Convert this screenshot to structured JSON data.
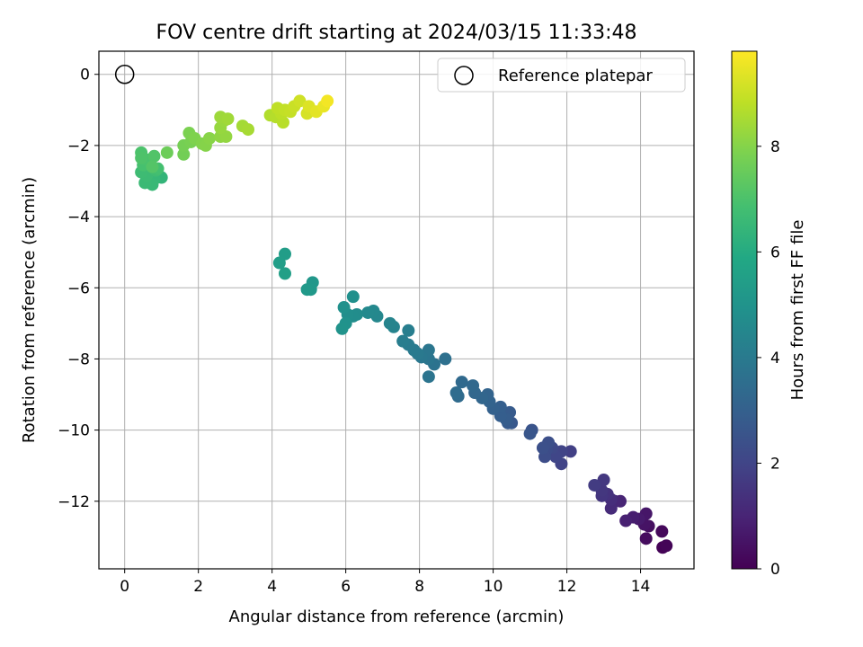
{
  "chart_data": {
    "type": "scatter",
    "title": "FOV centre drift starting at 2024/03/15 11:33:48",
    "xlabel": "Angular distance from reference (arcmin)",
    "ylabel": "Rotation from reference (arcmin)",
    "xlim": [
      -0.7,
      15.45
    ],
    "ylim": [
      -13.9,
      0.65
    ],
    "xticks": [
      0,
      2,
      4,
      6,
      8,
      10,
      12,
      14
    ],
    "yticks": [
      0,
      -2,
      -4,
      -6,
      -8,
      -10,
      -12
    ],
    "grid": true,
    "legend": {
      "placement": "top-right",
      "entries": [
        "Reference platepar"
      ]
    },
    "reference_point": {
      "x": 0,
      "y": 0
    },
    "colorbar": {
      "label": "Hours from first FF file",
      "colormap": "viridis",
      "range": [
        0,
        9.8
      ],
      "ticks": [
        0,
        2,
        4,
        6,
        8
      ]
    },
    "series": [
      {
        "points": [
          [
            14.6,
            -13.3,
            0.05
          ],
          [
            14.7,
            -13.25,
            0.1
          ],
          [
            14.58,
            -12.85,
            0.2
          ],
          [
            14.15,
            -13.05,
            0.3
          ],
          [
            14.22,
            -12.7,
            0.4
          ],
          [
            14.1,
            -12.65,
            0.5
          ],
          [
            14.15,
            -12.35,
            0.6
          ],
          [
            13.95,
            -12.5,
            0.7
          ],
          [
            13.8,
            -12.45,
            0.8
          ],
          [
            13.6,
            -12.55,
            0.9
          ],
          [
            13.45,
            -12.0,
            1.0
          ],
          [
            13.3,
            -12.0,
            1.1
          ],
          [
            13.2,
            -12.2,
            1.2
          ],
          [
            13.2,
            -11.95,
            1.3
          ],
          [
            13.1,
            -11.8,
            1.4
          ],
          [
            12.95,
            -11.85,
            1.5
          ],
          [
            12.95,
            -11.7,
            1.55
          ],
          [
            13.0,
            -11.4,
            1.6
          ],
          [
            12.75,
            -11.55,
            1.7
          ],
          [
            12.1,
            -10.6,
            1.85
          ],
          [
            11.85,
            -10.95,
            1.95
          ],
          [
            11.85,
            -10.6,
            2.0
          ],
          [
            11.7,
            -10.75,
            2.05
          ],
          [
            11.6,
            -10.5,
            2.15
          ],
          [
            11.45,
            -10.55,
            2.25
          ],
          [
            11.4,
            -10.75,
            2.3
          ],
          [
            11.5,
            -10.35,
            2.35
          ],
          [
            11.35,
            -10.5,
            2.4
          ],
          [
            11.05,
            -10.0,
            2.55
          ],
          [
            11.0,
            -10.1,
            2.6
          ],
          [
            10.5,
            -9.8,
            2.7
          ],
          [
            10.4,
            -9.8,
            2.75
          ],
          [
            10.45,
            -9.5,
            2.8
          ],
          [
            10.35,
            -9.7,
            2.85
          ],
          [
            10.2,
            -9.6,
            2.9
          ],
          [
            10.2,
            -9.35,
            2.95
          ],
          [
            10.0,
            -9.4,
            3.0
          ],
          [
            9.9,
            -9.2,
            3.1
          ],
          [
            9.85,
            -9.0,
            3.15
          ],
          [
            9.7,
            -9.1,
            3.2
          ],
          [
            9.5,
            -8.95,
            3.25
          ],
          [
            9.45,
            -8.75,
            3.3
          ],
          [
            9.15,
            -8.65,
            3.35
          ],
          [
            9.05,
            -9.05,
            3.4
          ],
          [
            9.0,
            -8.95,
            3.45
          ],
          [
            8.7,
            -8.0,
            3.6
          ],
          [
            8.4,
            -8.15,
            3.7
          ],
          [
            8.25,
            -8.5,
            3.75
          ],
          [
            8.25,
            -8.0,
            3.8
          ],
          [
            8.25,
            -7.75,
            3.85
          ],
          [
            8.05,
            -7.95,
            3.9
          ],
          [
            7.95,
            -7.85,
            3.95
          ],
          [
            7.85,
            -7.75,
            4.0
          ],
          [
            7.7,
            -7.6,
            4.05
          ],
          [
            7.55,
            -7.5,
            4.1
          ],
          [
            7.7,
            -7.2,
            4.15
          ],
          [
            7.3,
            -7.1,
            4.35
          ],
          [
            7.2,
            -7.0,
            4.4
          ],
          [
            6.85,
            -6.8,
            4.5
          ],
          [
            6.75,
            -6.65,
            4.55
          ],
          [
            6.6,
            -6.7,
            4.6
          ],
          [
            6.3,
            -6.75,
            4.7
          ],
          [
            6.2,
            -6.8,
            4.75
          ],
          [
            6.05,
            -6.75,
            4.8
          ],
          [
            6.2,
            -6.25,
            4.85
          ],
          [
            5.95,
            -6.55,
            4.9
          ],
          [
            6.0,
            -7.0,
            4.95
          ],
          [
            5.9,
            -7.15,
            5.0
          ],
          [
            5.1,
            -5.85,
            5.15
          ],
          [
            5.05,
            -6.05,
            5.2
          ],
          [
            4.95,
            -6.05,
            5.25
          ],
          [
            4.35,
            -5.05,
            5.4
          ],
          [
            4.2,
            -5.3,
            5.45
          ],
          [
            4.35,
            -5.6,
            5.5
          ],
          [
            1.0,
            -2.9,
            6.4
          ],
          [
            0.8,
            -2.95,
            6.5
          ],
          [
            0.75,
            -3.1,
            6.55
          ],
          [
            0.55,
            -3.05,
            6.6
          ],
          [
            0.6,
            -2.85,
            6.65
          ],
          [
            0.45,
            -2.75,
            6.7
          ],
          [
            0.85,
            -2.7,
            6.75
          ],
          [
            0.7,
            -2.5,
            6.8
          ],
          [
            0.9,
            -2.65,
            6.85
          ],
          [
            0.5,
            -2.55,
            6.9
          ],
          [
            0.6,
            -2.4,
            6.95
          ],
          [
            0.45,
            -2.2,
            7.0
          ],
          [
            0.45,
            -2.35,
            7.05
          ],
          [
            0.8,
            -2.3,
            7.1
          ],
          [
            0.75,
            -2.6,
            7.15
          ],
          [
            1.15,
            -2.2,
            7.6
          ],
          [
            1.6,
            -2.25,
            7.7
          ],
          [
            1.6,
            -2.0,
            7.75
          ],
          [
            1.8,
            -1.9,
            7.8
          ],
          [
            1.75,
            -1.65,
            7.85
          ],
          [
            1.9,
            -1.8,
            7.9
          ],
          [
            2.1,
            -1.95,
            7.95
          ],
          [
            2.2,
            -2.0,
            8.0
          ],
          [
            2.3,
            -1.8,
            8.05
          ],
          [
            2.6,
            -1.75,
            8.15
          ],
          [
            2.75,
            -1.75,
            8.2
          ],
          [
            2.6,
            -1.5,
            8.25
          ],
          [
            2.7,
            -1.3,
            8.3
          ],
          [
            2.6,
            -1.2,
            8.35
          ],
          [
            2.8,
            -1.25,
            8.4
          ],
          [
            3.2,
            -1.45,
            8.45
          ],
          [
            3.35,
            -1.55,
            8.5
          ],
          [
            3.95,
            -1.15,
            8.65
          ],
          [
            4.1,
            -1.2,
            8.7
          ],
          [
            4.3,
            -1.35,
            8.75
          ],
          [
            4.25,
            -1.1,
            8.8
          ],
          [
            4.15,
            -0.95,
            8.85
          ],
          [
            4.35,
            -1.0,
            8.9
          ],
          [
            4.5,
            -1.05,
            8.95
          ],
          [
            4.6,
            -0.9,
            9.0
          ],
          [
            4.75,
            -0.75,
            9.1
          ],
          [
            4.95,
            -1.1,
            9.2
          ],
          [
            5.0,
            -0.9,
            9.3
          ],
          [
            5.2,
            -1.05,
            9.4
          ],
          [
            5.4,
            -0.9,
            9.5
          ],
          [
            5.5,
            -0.75,
            9.65
          ]
        ]
      }
    ]
  }
}
